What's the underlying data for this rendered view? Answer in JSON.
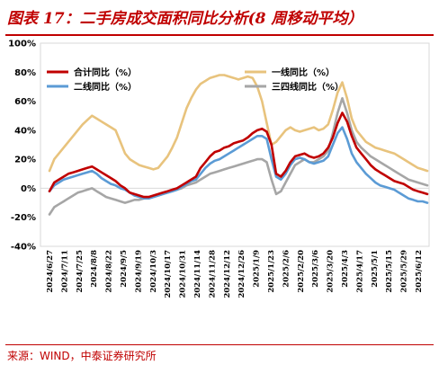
{
  "header": {
    "title": "图表 17：二手房成交面积同比分析(8 周移动平均）"
  },
  "footer": {
    "source": "来源：WIND，中泰证券研究所"
  },
  "colors": {
    "brand": "#c00000"
  },
  "chart_data": {
    "type": "line",
    "title": "",
    "xlabel": "",
    "ylabel": "",
    "ylim": [
      -40,
      100
    ],
    "yticks": [
      "100%",
      "80%",
      "60%",
      "40%",
      "20%",
      "0%",
      "-20%",
      "-40%"
    ],
    "yvalues": [
      100,
      80,
      60,
      40,
      20,
      0,
      -20,
      -40
    ],
    "xtick_labels": [
      "2024/6/27",
      "2024/7/11",
      "2024/7/25",
      "2024/8/8",
      "2024/8/22",
      "2024/9/5",
      "2024/9/19",
      "2024/10/3",
      "2024/10/17",
      "2024/10/31",
      "2024/11/14",
      "2024/11/28",
      "2024/12/12",
      "2024/12/26",
      "2025/1/9",
      "2025/1/23",
      "2025/2/6",
      "2025/2/20",
      "2025/3/6",
      "2025/3/20",
      "2025/4/3",
      "2025/4/17",
      "2025/5/1",
      "2025/5/15",
      "2025/5/29",
      "2025/6/12"
    ],
    "grid": false,
    "legend_position": "top",
    "series": [
      {
        "name": "合计同比（%）",
        "color": "#c00000",
        "values": [
          -2,
          4,
          6,
          8,
          10,
          11,
          12,
          13,
          14,
          15,
          13,
          11,
          9,
          7,
          5,
          2,
          0,
          -3,
          -4,
          -5,
          -6,
          -6,
          -5,
          -4,
          -3,
          -2,
          -1,
          0,
          2,
          4,
          6,
          8,
          14,
          18,
          22,
          25,
          26,
          28,
          29,
          31,
          32,
          33,
          35,
          38,
          40,
          41,
          39,
          30,
          10,
          8,
          12,
          18,
          22,
          23,
          24,
          22,
          21,
          22,
          24,
          28,
          35,
          45,
          52,
          46,
          36,
          28,
          24,
          20,
          16,
          13,
          11,
          9,
          7,
          5,
          4,
          3,
          1,
          -1,
          -2,
          -3,
          -4
        ]
      },
      {
        "name": "一线同比（%）",
        "color": "#e8c37d",
        "values": [
          12,
          20,
          24,
          28,
          32,
          36,
          40,
          44,
          47,
          50,
          48,
          46,
          44,
          42,
          40,
          32,
          24,
          20,
          18,
          16,
          15,
          14,
          13,
          14,
          18,
          22,
          28,
          35,
          45,
          55,
          62,
          68,
          72,
          74,
          76,
          77,
          78,
          78,
          77,
          76,
          75,
          76,
          77,
          76,
          70,
          60,
          45,
          30,
          32,
          36,
          40,
          42,
          40,
          39,
          40,
          41,
          42,
          40,
          41,
          44,
          54,
          66,
          73,
          62,
          48,
          40,
          36,
          32,
          30,
          28,
          27,
          26,
          25,
          24,
          22,
          20,
          18,
          16,
          14,
          13,
          12
        ]
      },
      {
        "name": "二线同比（%）",
        "color": "#5b9bd5",
        "values": [
          -2,
          2,
          4,
          6,
          7,
          8,
          9,
          10,
          11,
          12,
          10,
          7,
          5,
          3,
          2,
          0,
          -1,
          -3,
          -5,
          -6,
          -7,
          -7,
          -6,
          -5,
          -4,
          -3,
          -2,
          -1,
          1,
          3,
          5,
          6,
          10,
          14,
          17,
          19,
          20,
          22,
          24,
          26,
          28,
          30,
          32,
          34,
          36,
          36,
          34,
          20,
          8,
          6,
          10,
          16,
          20,
          21,
          20,
          18,
          17,
          18,
          19,
          22,
          30,
          38,
          42,
          34,
          24,
          18,
          14,
          10,
          7,
          4,
          2,
          1,
          0,
          -1,
          -3,
          -5,
          -7,
          -8,
          -9,
          -9,
          -10
        ]
      },
      {
        "name": "三四线同比（%）",
        "color": "#a6a6a6",
        "values": [
          -18,
          -13,
          -11,
          -9,
          -7,
          -5,
          -3,
          -2,
          -1,
          0,
          -2,
          -4,
          -6,
          -7,
          -8,
          -9,
          -10,
          -9,
          -8,
          -8,
          -7,
          -7,
          -6,
          -5,
          -4,
          -3,
          -2,
          -1,
          0,
          2,
          3,
          4,
          6,
          8,
          10,
          11,
          12,
          13,
          14,
          15,
          16,
          17,
          18,
          19,
          20,
          20,
          18,
          6,
          -4,
          -2,
          4,
          10,
          16,
          18,
          20,
          18,
          18,
          20,
          22,
          26,
          38,
          52,
          62,
          52,
          40,
          32,
          28,
          25,
          22,
          20,
          18,
          16,
          14,
          12,
          10,
          8,
          6,
          5,
          4,
          3,
          2
        ]
      }
    ]
  }
}
